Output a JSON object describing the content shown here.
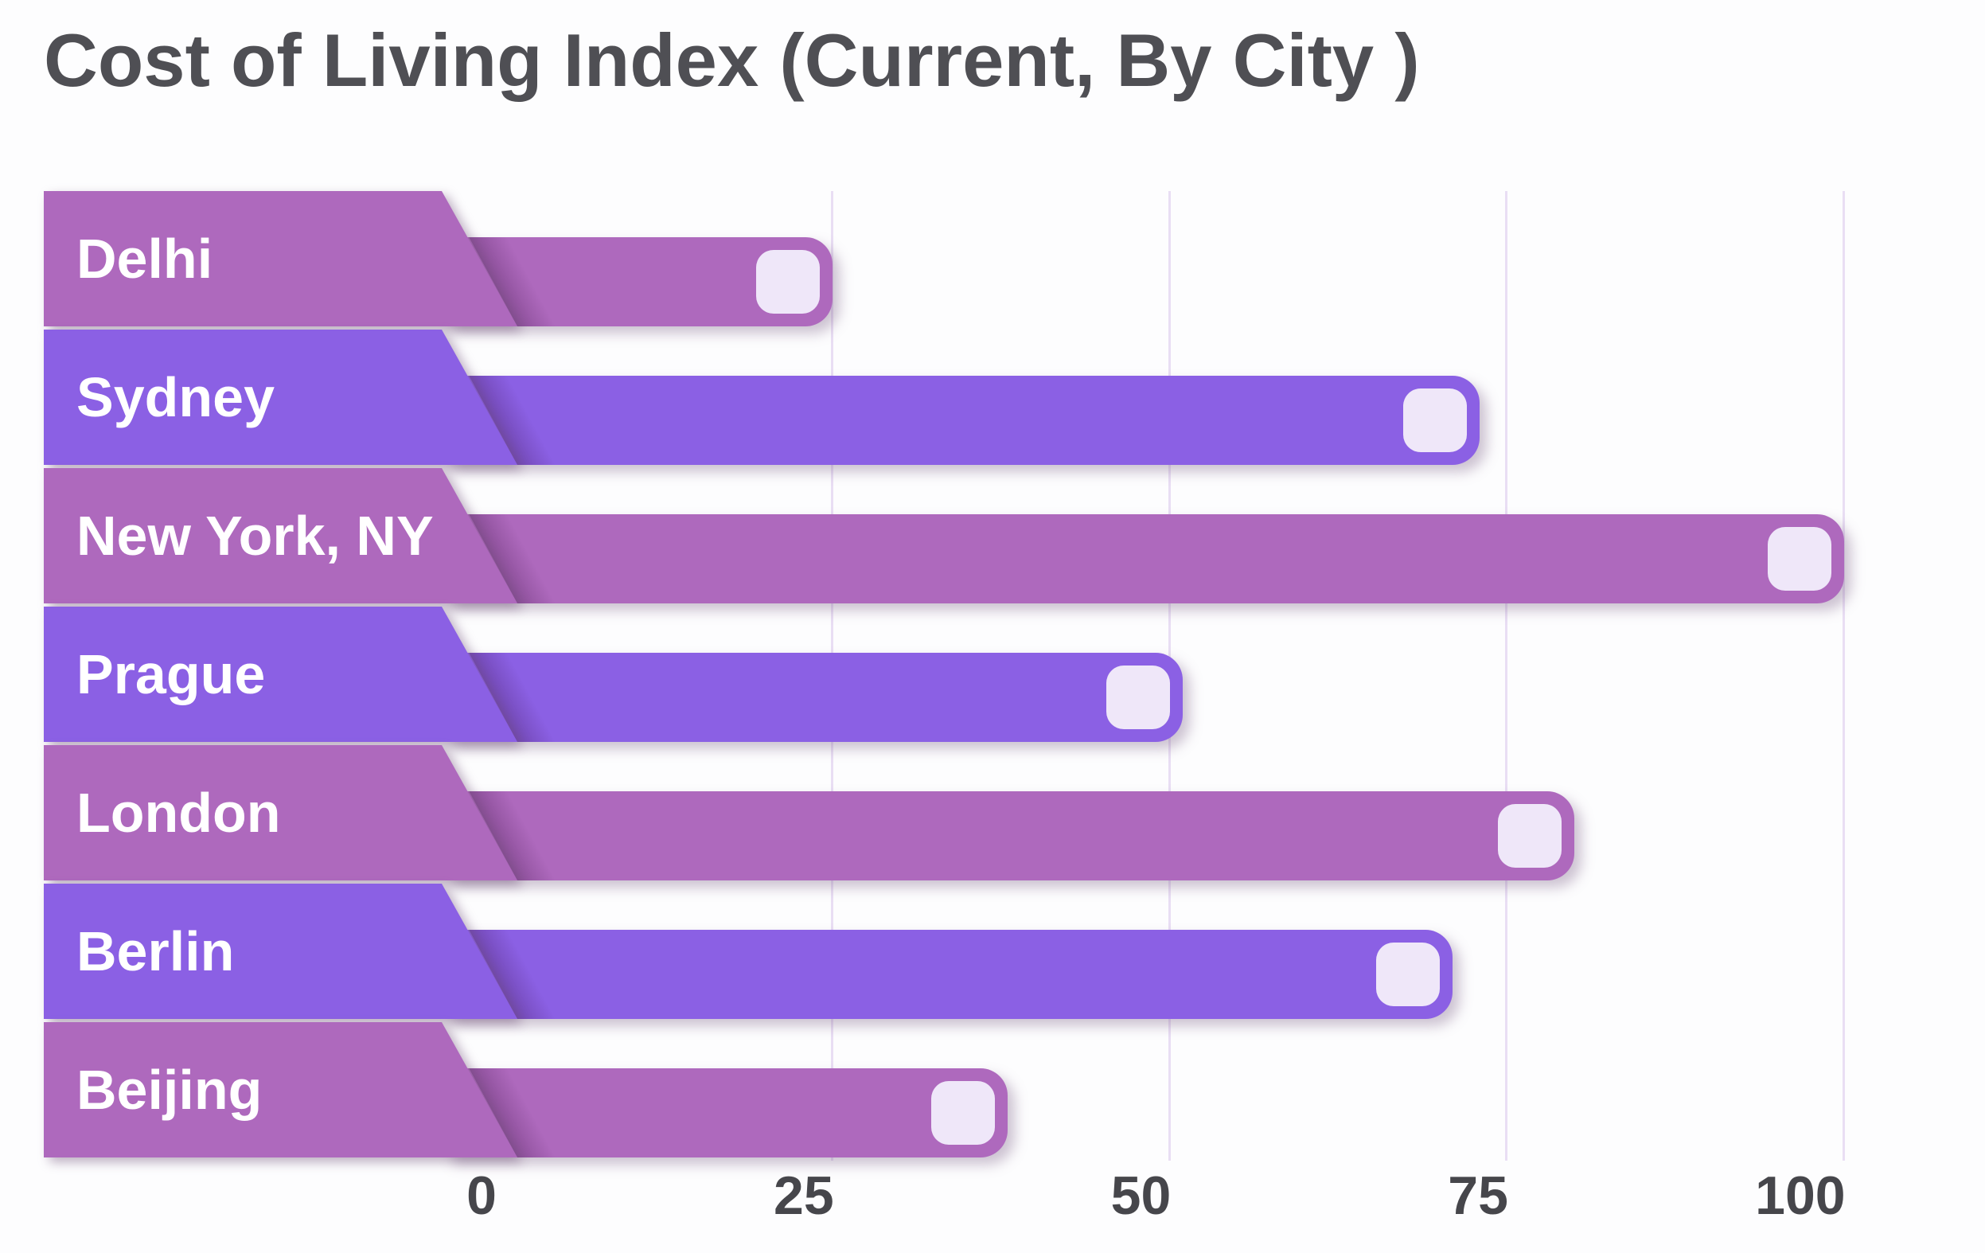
{
  "title": "Cost of Living Index (Current, By City )",
  "chart_data": {
    "type": "bar",
    "orientation": "horizontal",
    "title": "Cost of Living Index (Current, By City )",
    "categories": [
      "Delhi",
      "Sydney",
      "New York, NY",
      "Prague",
      "London",
      "Berlin",
      "Beijing"
    ],
    "values": [
      25,
      73,
      100,
      51,
      80,
      71,
      38
    ],
    "xlabel": "",
    "ylabel": "",
    "xlim": [
      0,
      110
    ],
    "xticks": [
      0,
      25,
      50,
      75,
      100
    ],
    "xtick_labels": [
      "0",
      "25",
      "50",
      "75",
      "100"
    ],
    "grid": "vertical gridlines at ticks 25/50/75/100",
    "legend": "none",
    "bar_colors": [
      "#ae69bd",
      "#8b60e4",
      "#ae69bd",
      "#8b60e4",
      "#ae69bd",
      "#8b60e4",
      "#ae69bd"
    ],
    "bar_style": "rounded right end with light inset square cap, slanted label band on left"
  },
  "colors": {
    "background": "#fdfdfe",
    "magenta_bar": "#ae69bd",
    "violet_bar": "#8b60e4",
    "end_square": "#efe7f9",
    "gridline": "#e9def4",
    "title_text": "#4f4f54",
    "tick_text": "#46464b",
    "label_text": "#ffffff"
  }
}
